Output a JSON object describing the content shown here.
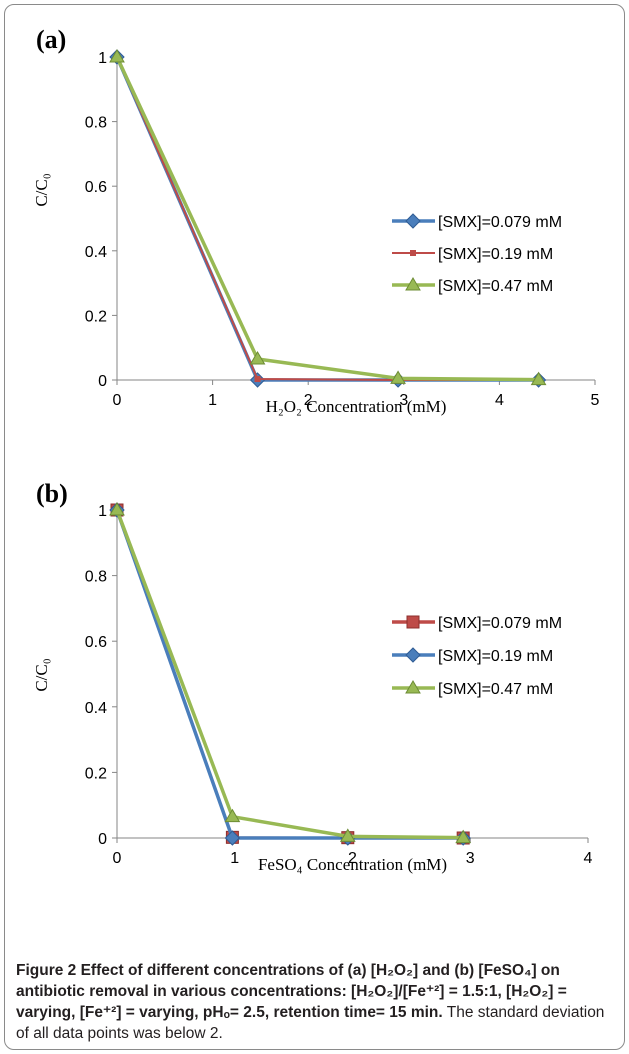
{
  "chart_data": [
    {
      "type": "line",
      "panel_label": "(a)",
      "xlabel": "H₂O₂ Concentration (mM)",
      "ylabel": "C/C₀",
      "xlim": [
        0,
        5
      ],
      "ylim": [
        0,
        1
      ],
      "xticks": [
        "0",
        "1",
        "2",
        "3",
        "4",
        "5"
      ],
      "yticks": [
        "0",
        "0.2",
        "0.4",
        "0.6",
        "0.8",
        "1"
      ],
      "grid": false,
      "legend_position": "right",
      "series": [
        {
          "name": "[SMX]=0.079 mM",
          "color": "#4a7ebb",
          "marker": "diamond",
          "x": [
            0,
            1.47,
            2.94,
            4.41
          ],
          "y": [
            1,
            0.0,
            0.0,
            0.0
          ]
        },
        {
          "name": "[SMX]=0.19 mM",
          "color": "#be4b48",
          "marker": "square",
          "x": [
            0,
            1.47,
            2.94,
            4.41
          ],
          "y": [
            1,
            0.003,
            0.0,
            0.0
          ]
        },
        {
          "name": "[SMX]=0.47 mM",
          "color": "#98b954",
          "marker": "triangle",
          "x": [
            0,
            1.47,
            2.94,
            4.41
          ],
          "y": [
            1,
            0.065,
            0.005,
            0.001
          ]
        }
      ]
    },
    {
      "type": "line",
      "panel_label": "(b)",
      "xlabel": "FeSO₄ Concentration (mM)",
      "ylabel": "C/C₀",
      "xlim": [
        0,
        4
      ],
      "ylim": [
        0,
        1
      ],
      "xticks": [
        "0",
        "1",
        "2",
        "3",
        "4"
      ],
      "yticks": [
        "0",
        "0.2",
        "0.4",
        "0.6",
        "0.8",
        "1"
      ],
      "grid": false,
      "legend_position": "right",
      "series": [
        {
          "name": "[SMX]=0.079 mM",
          "color": "#be4b48",
          "marker": "square",
          "x": [
            0,
            0.98,
            1.96,
            2.94
          ],
          "y": [
            1,
            0.002,
            0.001,
            0.0
          ]
        },
        {
          "name": "[SMX]=0.19 mM",
          "color": "#4a7ebb",
          "marker": "diamond",
          "x": [
            0,
            0.98,
            1.96,
            2.94
          ],
          "y": [
            1,
            0.0,
            0.0,
            0.0
          ]
        },
        {
          "name": "[SMX]=0.47 mM",
          "color": "#98b954",
          "marker": "triangle",
          "x": [
            0,
            0.98,
            1.96,
            2.94
          ],
          "y": [
            1,
            0.065,
            0.005,
            0.001
          ]
        }
      ]
    }
  ],
  "caption": {
    "bold": "Figure 2 Effect of different concentrations of (a) [H₂O₂] and (b) [FeSO₄] on antibiotic removal in various concentrations: [H₂O₂]/[Fe⁺²] = 1.5:1, [H₂O₂] = varying, [Fe⁺²] = varying, pHₒ= 2.5, retention time= 15 min.",
    "normal": " The standard deviation of all data points was below 2."
  }
}
